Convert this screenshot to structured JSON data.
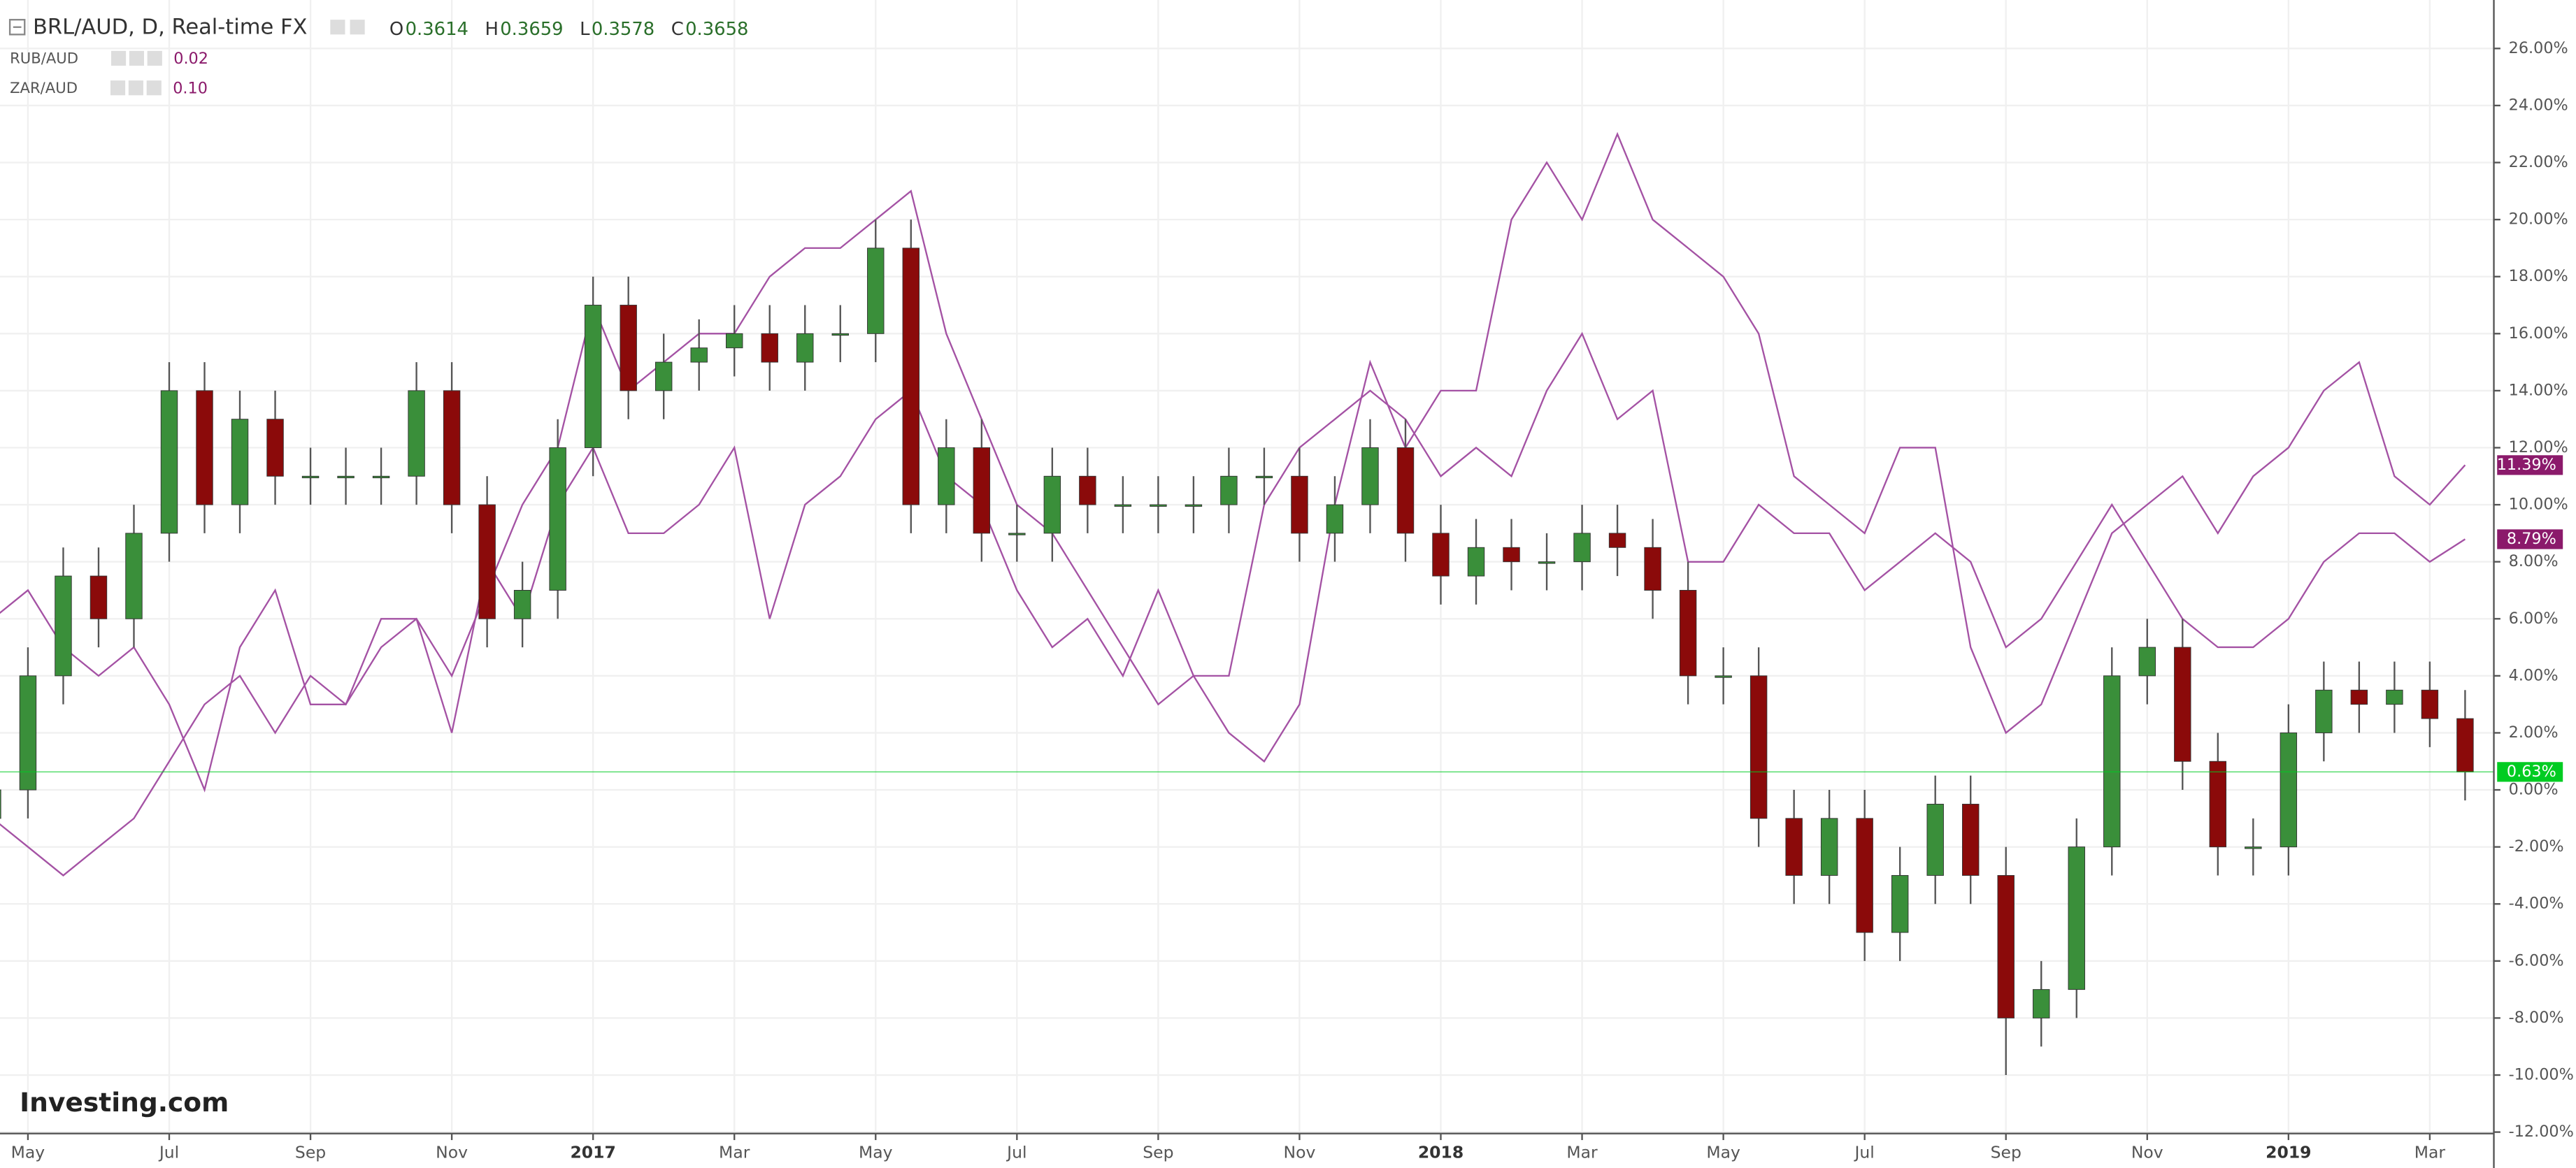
{
  "chart_data": {
    "type": "candlestick",
    "title": "BRL/AUD, D, Real-time FX",
    "ohlc_labels": [
      "O",
      "H",
      "L",
      "C"
    ],
    "ohlc_values": [
      0.3614,
      0.3659,
      0.3578,
      0.3658
    ],
    "watermark": "Investing.com",
    "categories": [
      null,
      "May",
      null,
      null,
      null,
      "Jul",
      null,
      null,
      null,
      "Sep",
      null,
      null,
      null,
      "Nov",
      null,
      null,
      null,
      "2017",
      null,
      null,
      null,
      "Mar",
      null,
      null,
      null,
      "May",
      null,
      null,
      null,
      "Jul",
      null,
      null,
      null,
      "Sep",
      null,
      null,
      null,
      "Nov",
      null,
      null,
      null,
      "2018",
      null,
      null,
      null,
      "Mar",
      null,
      null,
      null,
      "May",
      null,
      null,
      null,
      "Jul",
      null,
      null,
      null,
      "Sep",
      null,
      null,
      null,
      "Nov",
      null,
      null,
      null,
      "2019",
      null,
      null,
      null,
      "Mar",
      null
    ],
    "open": [
      -1,
      0,
      4,
      7.5,
      6,
      9,
      14,
      10,
      13,
      11,
      11,
      11,
      11,
      14,
      10,
      6,
      7,
      12,
      17,
      14,
      15,
      15.5,
      16,
      15,
      16,
      16,
      19,
      10,
      12,
      9,
      9,
      11,
      10,
      10,
      10,
      10,
      11,
      11,
      9,
      10,
      12,
      9,
      7.5,
      8.5,
      8,
      8,
      9,
      8.5,
      7,
      4,
      4,
      -1,
      -3,
      -1,
      -5,
      -3,
      -0.5,
      -3,
      -8,
      -7,
      -2,
      4,
      5,
      1,
      -2,
      -2,
      2,
      3.5,
      3,
      3.5,
      2.5
    ],
    "high": [
      1,
      5,
      8.5,
      8.5,
      10,
      15,
      15,
      14,
      14,
      12,
      12,
      12,
      15,
      15,
      11,
      8,
      13,
      18,
      18,
      16,
      16.5,
      17,
      17,
      17,
      17,
      20,
      20,
      13,
      13,
      10,
      12,
      12,
      11,
      11,
      11,
      12,
      12,
      12,
      11,
      13,
      13,
      10,
      9.5,
      9.5,
      9,
      10,
      10,
      9.5,
      8,
      5,
      5,
      0,
      0,
      0,
      -2,
      0.5,
      0.5,
      -2,
      -6,
      -1,
      5,
      6,
      6,
      2,
      -1,
      3,
      4.5,
      4.5,
      4.5,
      4.5,
      3.5
    ],
    "low": [
      -2,
      -1,
      3,
      5,
      5,
      8,
      9,
      9,
      10,
      10,
      10,
      10,
      10,
      9,
      5,
      5,
      6,
      11,
      13,
      13,
      14,
      14.5,
      14,
      14,
      15,
      15,
      9,
      9,
      8,
      8,
      8,
      9,
      9,
      9,
      9,
      9,
      10,
      8,
      8,
      9,
      8,
      6.5,
      6.5,
      7,
      7,
      7,
      7.5,
      6,
      3,
      3,
      -2,
      -4,
      -4,
      -6,
      -6,
      -4,
      -4,
      -10,
      -9,
      -8,
      -3,
      3,
      0,
      -3,
      -3,
      -3,
      1,
      2,
      2,
      1.5,
      -0.37
    ],
    "close": [
      0,
      4,
      7.5,
      6,
      9,
      14,
      10,
      13,
      11,
      11,
      11,
      11,
      14,
      10,
      6,
      7,
      12,
      17,
      14,
      15,
      15.5,
      16,
      15,
      16,
      16,
      19,
      10,
      12,
      9,
      9,
      11,
      10,
      10,
      10,
      10,
      11,
      11,
      9,
      10,
      12,
      9,
      7.5,
      8.5,
      8,
      8,
      9,
      8.5,
      7,
      4,
      4,
      -1,
      -3,
      -1,
      -5,
      -3,
      -0.5,
      -3,
      -8,
      -7,
      -2,
      4,
      5,
      1,
      -2,
      -2,
      2,
      3.5,
      3,
      3.5,
      2.5,
      0.63
    ],
    "close_label": "0.63%",
    "up_color": "#3a8f3a",
    "down_color": "#8b0a0a",
    "last_color": "#00cc22",
    "series": [
      {
        "name": "RUB/AUD",
        "indicator": "0.02",
        "color": "#a452a4",
        "last_label": "11.39%",
        "badge_color": "#8b1a6b",
        "values": [
          -1,
          -2,
          -3,
          -2,
          -1,
          1,
          3,
          4,
          2,
          4,
          3,
          5,
          6,
          4,
          7,
          10,
          12,
          17,
          14,
          15,
          16,
          16,
          18,
          19,
          19,
          20,
          21,
          16,
          13,
          10,
          9,
          7,
          5,
          3,
          4,
          2,
          1,
          3,
          10,
          15,
          12,
          14,
          14,
          20,
          22,
          20,
          23,
          20,
          19,
          18,
          16,
          11,
          10,
          9,
          12,
          12,
          5,
          2,
          3,
          6,
          9,
          10,
          11,
          9,
          11,
          12,
          14,
          15,
          11,
          10,
          11.39
        ]
      },
      {
        "name": "ZAR/AUD",
        "indicator": "0.10",
        "color": "#a452a4",
        "last_label": "8.79%",
        "badge_color": "#8b1a6b",
        "values": [
          6,
          7,
          5,
          4,
          5,
          3,
          0,
          5,
          7,
          3,
          3,
          6,
          6,
          2,
          8,
          6,
          10,
          12,
          9,
          9,
          10,
          12,
          6,
          10,
          11,
          13,
          14,
          11,
          10,
          7,
          5,
          6,
          4,
          7,
          4,
          4,
          10,
          12,
          13,
          14,
          13,
          11,
          12,
          11,
          14,
          16,
          13,
          14,
          8,
          8,
          10,
          9,
          9,
          7,
          8,
          9,
          8,
          5,
          6,
          8,
          10,
          8,
          6,
          5,
          5,
          6,
          8,
          9,
          9,
          8,
          8.79
        ]
      }
    ],
    "ylim": [
      -12.05,
      27.7
    ],
    "yticks": [
      {
        "value": 26,
        "label": "26.00%"
      },
      {
        "value": 24,
        "label": "24.00%"
      },
      {
        "value": 22,
        "label": "22.00%"
      },
      {
        "value": 20,
        "label": "20.00%"
      },
      {
        "value": 18,
        "label": "18.00%"
      },
      {
        "value": 16,
        "label": "16.00%"
      },
      {
        "value": 14,
        "label": "14.00%"
      },
      {
        "value": 12,
        "label": "12.00%"
      },
      {
        "value": 10,
        "label": "10.00%"
      },
      {
        "value": 8,
        "label": "8.00%"
      },
      {
        "value": 6,
        "label": "6.00%"
      },
      {
        "value": 4,
        "label": "4.00%"
      },
      {
        "value": 2,
        "label": "2.00%"
      },
      {
        "value": 0,
        "label": "0.00%"
      },
      {
        "value": -2,
        "label": "-2.00%"
      },
      {
        "value": -4,
        "label": "-4.00%"
      },
      {
        "value": -6,
        "label": "-6.00%"
      },
      {
        "value": -8,
        "label": "-8.00%"
      },
      {
        "value": -10,
        "label": "-10.00%"
      },
      {
        "value": -12,
        "label": "-12.00%"
      }
    ],
    "grid": true
  }
}
